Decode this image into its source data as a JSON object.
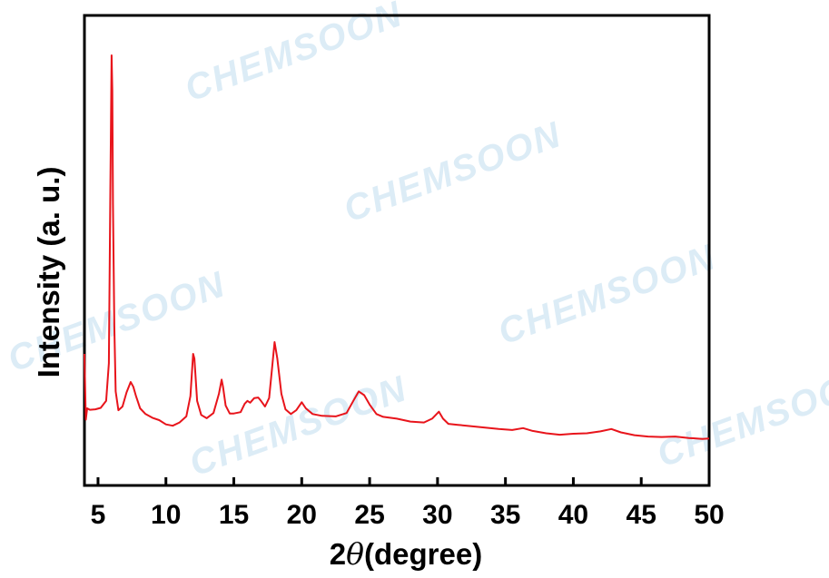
{
  "watermark": "CHEMSOON",
  "chart_data": {
    "type": "line",
    "xlabel": "2θ(degree)",
    "xlabel_prefix": "2",
    "xlabel_theta": "θ",
    "xlabel_suffix": "(degree)",
    "ylabel": "Intensity (a. u.)",
    "xlim": [
      4,
      50
    ],
    "ylim": [
      0,
      100
    ],
    "xticks": [
      5,
      10,
      15,
      20,
      25,
      30,
      35,
      40,
      45,
      50
    ],
    "y_ticks_shown": false,
    "grid": false,
    "series_color": "#e8141b",
    "series": [
      {
        "x": [
          4.0,
          4.1,
          4.2,
          4.4,
          4.8,
          5.2,
          5.6,
          5.8,
          5.9,
          6.0,
          6.05,
          6.1,
          6.2,
          6.3,
          6.5,
          6.8,
          7.1,
          7.4,
          7.6,
          7.8,
          8.1,
          8.5,
          9.0,
          9.5,
          10.0,
          10.5,
          11.0,
          11.5,
          11.8,
          12.0,
          12.1,
          12.3,
          12.6,
          13.0,
          13.5,
          13.9,
          14.1,
          14.2,
          14.4,
          14.7,
          15.0,
          15.5,
          15.8,
          16.0,
          16.2,
          16.5,
          16.8,
          17.0,
          17.3,
          17.6,
          17.8,
          18.0,
          18.2,
          18.5,
          18.8,
          19.2,
          19.6,
          20.0,
          20.3,
          20.8,
          21.5,
          22.5,
          23.3,
          23.8,
          24.2,
          24.6,
          25.0,
          25.5,
          26.0,
          27.0,
          28.0,
          29.0,
          29.6,
          30.1,
          30.4,
          30.8,
          31.5,
          32.5,
          33.5,
          34.5,
          35.5,
          36.3,
          37.0,
          38.0,
          39.0,
          40.0,
          41.0,
          42.0,
          42.8,
          43.5,
          44.5,
          45.5,
          46.5,
          47.5,
          48.5,
          49.5,
          50.0
        ],
        "y": [
          28.0,
          14.0,
          16.4,
          16.1,
          16.2,
          16.5,
          18.0,
          26.0,
          60.0,
          91.5,
          84.0,
          60.0,
          34.0,
          20.0,
          16.0,
          16.8,
          19.8,
          22.0,
          21.0,
          19.0,
          16.4,
          15.2,
          14.4,
          13.9,
          13.0,
          12.7,
          13.4,
          14.7,
          19.0,
          28.0,
          27.0,
          18.0,
          15.0,
          14.3,
          15.4,
          19.5,
          22.5,
          21.0,
          17.0,
          15.3,
          15.3,
          15.6,
          17.4,
          18.0,
          17.6,
          18.6,
          18.7,
          18.0,
          16.8,
          18.6,
          24.5,
          30.5,
          27.0,
          19.5,
          16.2,
          15.2,
          16.0,
          17.7,
          16.4,
          15.2,
          14.8,
          14.7,
          15.4,
          18.0,
          20.0,
          19.2,
          17.2,
          15.2,
          14.6,
          14.2,
          13.6,
          13.4,
          14.2,
          15.7,
          14.2,
          13.1,
          12.9,
          12.6,
          12.3,
          12.0,
          11.8,
          12.2,
          11.6,
          11.1,
          10.8,
          11.0,
          11.1,
          11.5,
          12.0,
          11.3,
          10.7,
          10.4,
          10.3,
          10.4,
          10.1,
          9.9,
          10.0
        ]
      }
    ]
  }
}
